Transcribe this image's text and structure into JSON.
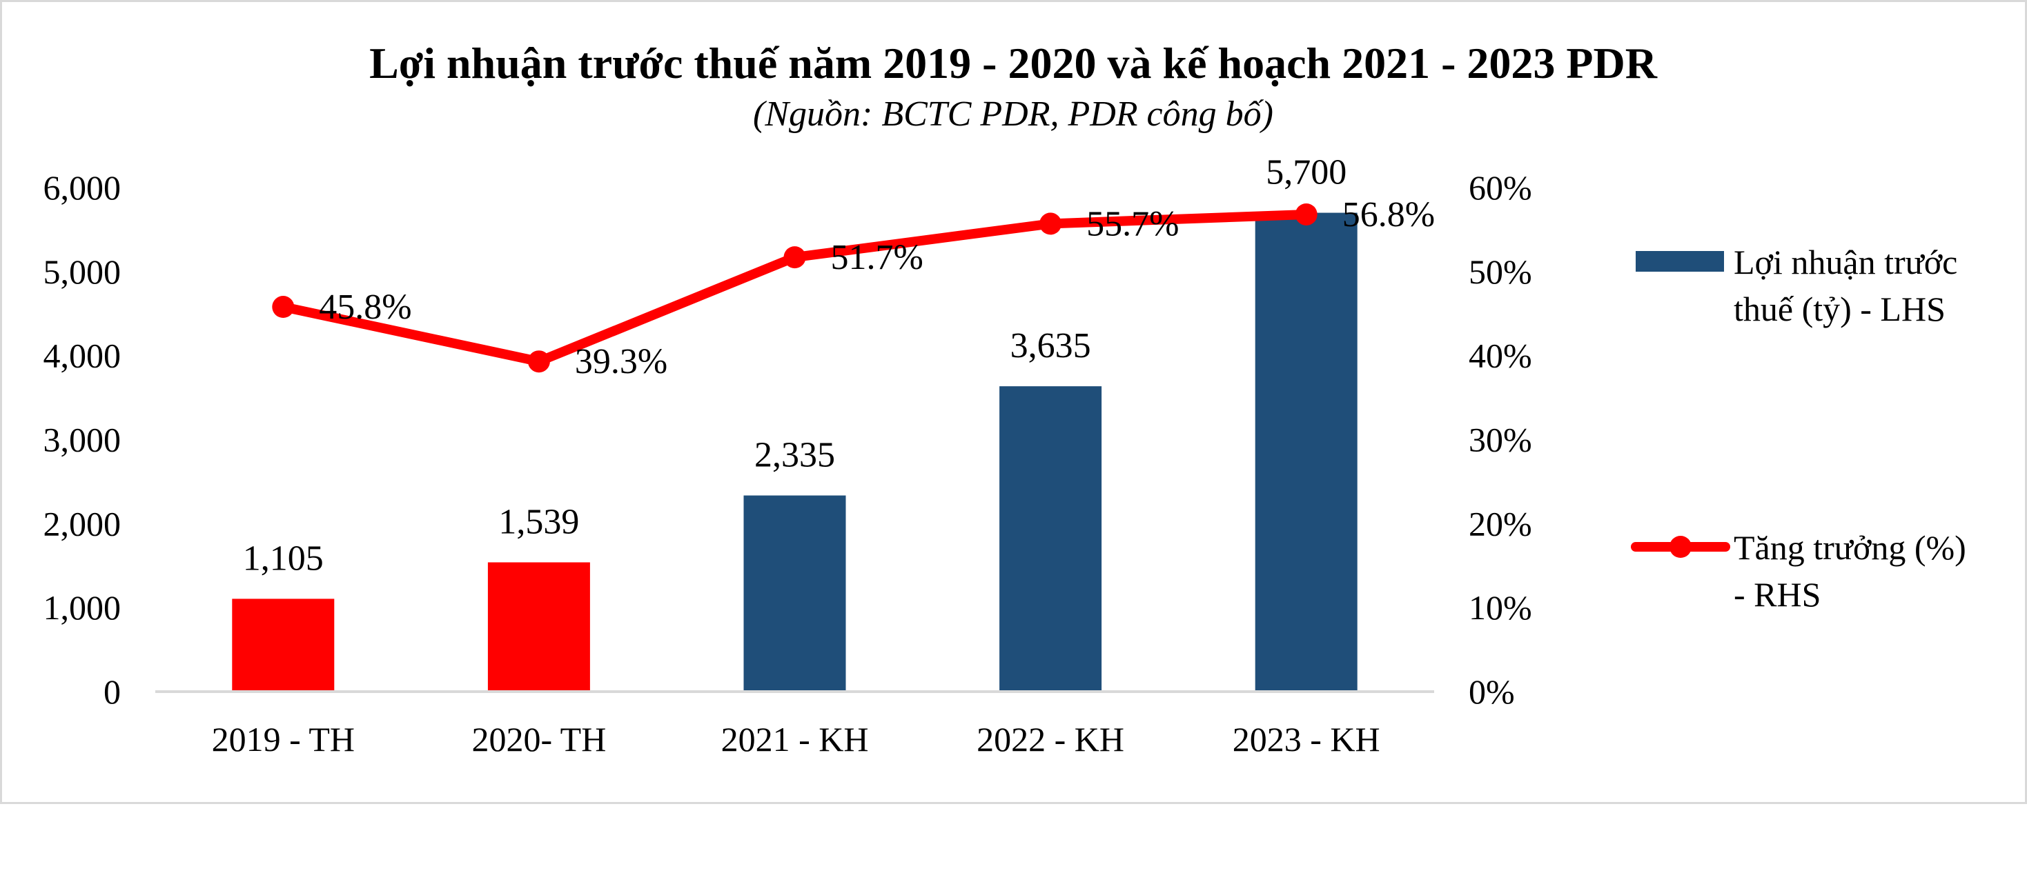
{
  "chart_data": {
    "type": "bar",
    "title": "Lợi nhuận trước thuế năm 2019 - 2020 và kế hoạch 2021 - 2023 PDR",
    "subtitle": "(Nguồn: BCTC PDR, PDR công bố)",
    "categories": [
      "2019 - TH",
      "2020- TH",
      "2021 - KH",
      "2022 - KH",
      "2023 - KH"
    ],
    "series": [
      {
        "name": "Lợi nhuận trước thuế (tỷ) - LHS",
        "type": "bar",
        "axis": "left",
        "values": [
          1105,
          1539,
          2335,
          3635,
          5700
        ],
        "labels": [
          "1,105",
          "1,539",
          "2,335",
          "3,635",
          "5,700"
        ],
        "colors": [
          "#ff0000",
          "#ff0000",
          "#1f4e79",
          "#1f4e79",
          "#1f4e79"
        ]
      },
      {
        "name": "Tăng trưởng (%) - RHS",
        "type": "line",
        "axis": "right",
        "values": [
          45.8,
          39.3,
          51.7,
          55.7,
          56.8
        ],
        "labels": [
          "45.8%",
          "39.3%",
          "51.7%",
          "55.7%",
          "56.8%"
        ],
        "color": "#ff0000"
      }
    ],
    "y_left": {
      "lim": [
        0,
        6000
      ],
      "ticks": [
        "0",
        "1,000",
        "2,000",
        "3,000",
        "4,000",
        "5,000",
        "6,000"
      ]
    },
    "y_right": {
      "lim": [
        0,
        60
      ],
      "ticks": [
        "0%",
        "10%",
        "20%",
        "30%",
        "40%",
        "50%",
        "60%"
      ]
    },
    "legend": {
      "placement": "right",
      "items": [
        {
          "lines": [
            "Lợi nhuận trước",
            "thuế (tỷ) - LHS"
          ],
          "color": "#1f4e79",
          "marker": "bar"
        },
        {
          "lines": [
            "Tăng trưởng (%)",
            "- RHS"
          ],
          "color": "#ff0000",
          "marker": "line"
        }
      ]
    },
    "grid": false
  }
}
